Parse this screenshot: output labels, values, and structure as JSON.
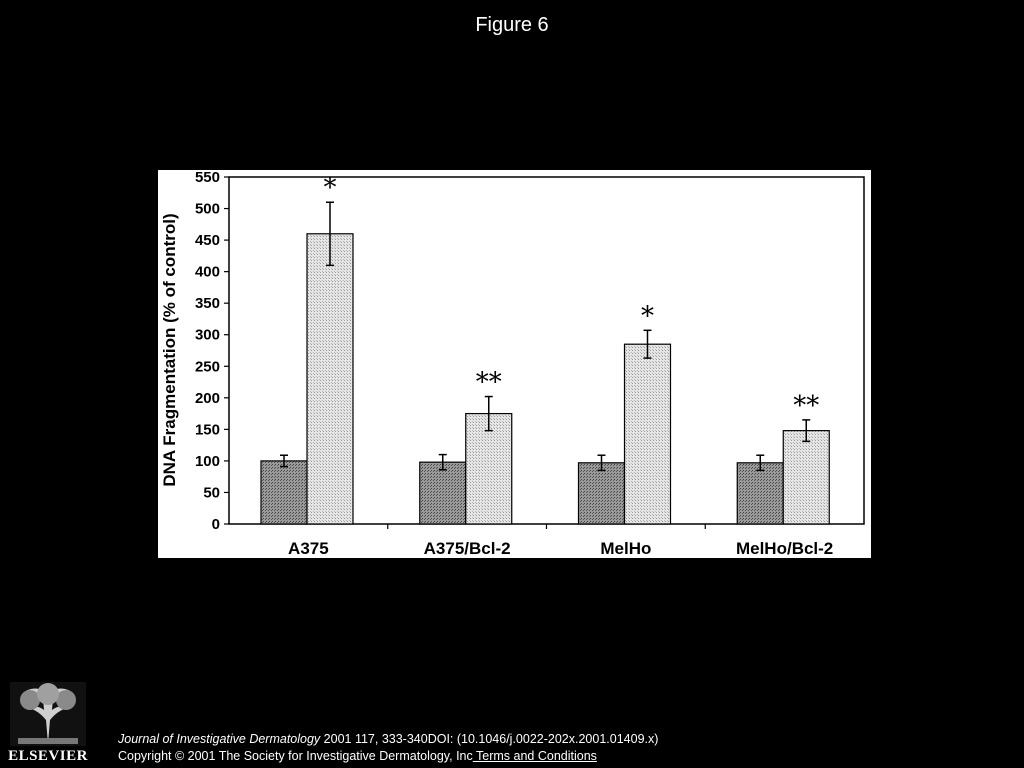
{
  "slide": {
    "title": "Figure 6"
  },
  "footer": {
    "journal": "Journal of Investigative Dermatology",
    "citation": " 2001 117, 333-340DOI: (10.1046/j.0022-202x.2001.01409.x)",
    "copyright": "Copyright © 2001 The Society for Investigative Dermatology, Inc",
    "terms_link": " Terms and Conditions"
  },
  "logo": {
    "text": "ELSEVIER"
  },
  "chart_data": {
    "type": "bar",
    "ylabel": "DNA Fragmentation (% of control)",
    "ylim": [
      0,
      550
    ],
    "yticks": [
      0,
      50,
      100,
      150,
      200,
      250,
      300,
      350,
      400,
      450,
      500,
      550
    ],
    "categories": [
      "A375",
      "A375/Bcl-2",
      "MelHo",
      "MelHo/Bcl-2"
    ],
    "series": [
      {
        "values": [
          100,
          98,
          97,
          97
        ],
        "errors": [
          9,
          12,
          12,
          12
        ],
        "color": "#8c8c8c"
      },
      {
        "values": [
          460,
          175,
          285,
          148
        ],
        "errors": [
          50,
          27,
          22,
          17
        ],
        "color": "#d8d8d8"
      }
    ],
    "annotations": [
      "*",
      "**",
      "*",
      "**"
    ]
  }
}
